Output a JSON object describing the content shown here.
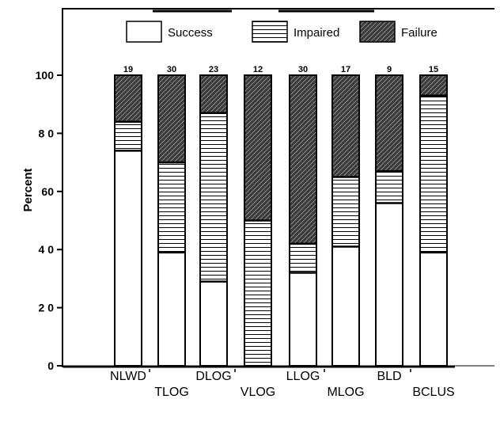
{
  "chart_data": {
    "type": "bar",
    "stacked": true,
    "categories": [
      "NLWD",
      "TLOG",
      "DLOG",
      "VLOG",
      "LLOG",
      "MLOG",
      "BLD",
      "BCLUS"
    ],
    "sample_sizes": [
      "19",
      "30",
      "23",
      "12",
      "30",
      "17",
      "9",
      "15"
    ],
    "series": [
      {
        "name": "Success",
        "values": [
          74,
          39,
          29,
          0,
          32,
          41,
          56,
          39
        ],
        "pattern": "open"
      },
      {
        "name": "Impaired",
        "values": [
          10,
          31,
          58,
          50,
          10,
          24,
          11,
          54
        ],
        "pattern": "horizontal-lines"
      },
      {
        "name": "Failure",
        "values": [
          16,
          30,
          13,
          50,
          58,
          35,
          33,
          7
        ],
        "pattern": "hatched"
      }
    ],
    "title": "",
    "xlabel": "",
    "ylabel": "Percent",
    "ylim": [
      0,
      100
    ],
    "yticks": [
      "0",
      "2 0",
      "4 0",
      "60",
      "8 0",
      "100"
    ],
    "ytick_values": [
      0,
      20,
      40,
      60,
      80,
      100
    ],
    "legend_position": "top",
    "grid": false
  }
}
